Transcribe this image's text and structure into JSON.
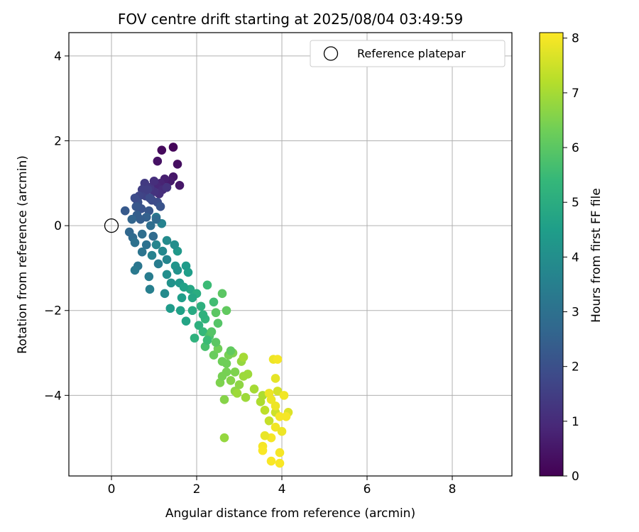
{
  "chart_data": {
    "type": "scatter",
    "title": "FOV centre drift starting at 2025/08/04 03:49:59",
    "xlabel": "Angular distance from reference (arcmin)",
    "ylabel": "Rotation from reference (arcmin)",
    "xlim": [
      -1.0,
      9.4
    ],
    "ylim": [
      -5.9,
      4.55
    ],
    "xticks": [
      0,
      2,
      4,
      6,
      8
    ],
    "yticks": [
      -4,
      -2,
      0,
      2,
      4
    ],
    "xtick_labels": [
      "0",
      "2",
      "4",
      "6",
      "8"
    ],
    "ytick_labels": [
      "−4",
      "−2",
      "0",
      "2",
      "4"
    ],
    "grid": true,
    "legend": {
      "position": "top-right",
      "entries": [
        "Reference platepar"
      ]
    },
    "reference_point": {
      "label": "Reference platepar",
      "x": 0,
      "y": 0,
      "marker": "open-circle"
    },
    "colorbar": {
      "label": "Hours from first FF file",
      "range": [
        0,
        8.1
      ],
      "ticks": [
        0,
        1,
        2,
        3,
        4,
        5,
        6,
        7,
        8
      ],
      "tick_labels": [
        "0",
        "1",
        "2",
        "3",
        "4",
        "5",
        "6",
        "7",
        "8"
      ],
      "colormap": "viridis",
      "colormap_stops": [
        "#440154",
        "#482878",
        "#3e4989",
        "#31688e",
        "#26828e",
        "#1f9e89",
        "#35b779",
        "#6ece58",
        "#b5de2b",
        "#fde725"
      ]
    },
    "points_columns": [
      "x",
      "y",
      "hours"
    ],
    "points": [
      [
        1.45,
        1.85,
        0.1
      ],
      [
        1.18,
        1.78,
        0.2
      ],
      [
        1.55,
        1.45,
        0.3
      ],
      [
        1.08,
        1.52,
        0.4
      ],
      [
        1.6,
        0.95,
        0.5
      ],
      [
        1.45,
        1.15,
        0.5
      ],
      [
        1.38,
        1.05,
        0.6
      ],
      [
        1.25,
        1.1,
        0.7
      ],
      [
        1.15,
        1.0,
        0.8
      ],
      [
        1.05,
        0.95,
        0.9
      ],
      [
        1.2,
        0.85,
        1.0
      ],
      [
        1.12,
        0.75,
        1.1
      ],
      [
        1.0,
        0.8,
        1.2
      ],
      [
        0.9,
        0.9,
        1.3
      ],
      [
        0.78,
        1.0,
        1.4
      ],
      [
        0.72,
        0.85,
        1.5
      ],
      [
        0.8,
        0.7,
        1.6
      ],
      [
        0.65,
        0.7,
        1.7
      ],
      [
        0.95,
        0.6,
        1.8
      ],
      [
        1.08,
        0.55,
        1.9
      ],
      [
        0.62,
        0.55,
        2.0
      ],
      [
        0.7,
        0.4,
        2.1
      ],
      [
        0.88,
        0.35,
        2.2
      ],
      [
        0.32,
        0.35,
        2.3
      ],
      [
        0.6,
        0.25,
        2.4
      ],
      [
        0.82,
        0.2,
        2.5
      ],
      [
        0.48,
        0.15,
        2.6
      ],
      [
        0.42,
        -0.15,
        2.7
      ],
      [
        0.5,
        -0.28,
        2.8
      ],
      [
        0.72,
        -0.2,
        2.9
      ],
      [
        0.55,
        -0.4,
        3.0
      ],
      [
        0.72,
        -0.62,
        3.1
      ],
      [
        0.62,
        -0.95,
        3.2
      ],
      [
        0.55,
        -1.05,
        3.3
      ],
      [
        0.88,
        -1.2,
        3.4
      ],
      [
        0.9,
        -1.5,
        3.5
      ],
      [
        0.95,
        -0.7,
        3.6
      ],
      [
        1.05,
        -0.45,
        3.7
      ],
      [
        1.2,
        -0.6,
        3.8
      ],
      [
        1.25,
        -1.6,
        3.9
      ],
      [
        1.3,
        -1.15,
        4.0
      ],
      [
        1.4,
        -1.35,
        4.1
      ],
      [
        1.5,
        -0.95,
        4.2
      ],
      [
        1.55,
        -0.6,
        4.3
      ],
      [
        1.6,
        -1.35,
        4.3
      ],
      [
        1.38,
        -1.95,
        4.4
      ],
      [
        1.65,
        -1.7,
        4.5
      ],
      [
        1.8,
        -1.1,
        4.5
      ],
      [
        1.62,
        -2.0,
        4.6
      ],
      [
        1.75,
        -2.25,
        4.7
      ],
      [
        1.85,
        -1.5,
        4.8
      ],
      [
        1.9,
        -2.0,
        4.9
      ],
      [
        2.0,
        -1.6,
        5.0
      ],
      [
        2.1,
        -1.9,
        5.1
      ],
      [
        2.05,
        -2.35,
        5.1
      ],
      [
        1.95,
        -2.65,
        5.2
      ],
      [
        2.2,
        -2.2,
        5.3
      ],
      [
        2.15,
        -2.5,
        5.4
      ],
      [
        2.25,
        -1.4,
        5.5
      ],
      [
        2.4,
        -1.8,
        5.6
      ],
      [
        2.2,
        -2.85,
        5.7
      ],
      [
        2.3,
        -2.6,
        5.8
      ],
      [
        2.5,
        -2.3,
        5.9
      ],
      [
        2.6,
        -1.6,
        6.0
      ],
      [
        2.45,
        -2.05,
        6.0
      ],
      [
        2.7,
        -2.0,
        6.1
      ],
      [
        2.4,
        -3.05,
        6.2
      ],
      [
        2.5,
        -2.9,
        6.3
      ],
      [
        2.6,
        -3.2,
        6.3
      ],
      [
        2.7,
        -3.45,
        6.4
      ],
      [
        2.55,
        -3.7,
        6.5
      ],
      [
        2.8,
        -3.65,
        6.6
      ],
      [
        2.65,
        -4.1,
        6.6
      ],
      [
        2.9,
        -3.9,
        6.7
      ],
      [
        2.65,
        -5.0,
        6.8
      ],
      [
        3.05,
        -3.2,
        6.8
      ],
      [
        3.2,
        -3.5,
        6.9
      ],
      [
        3.35,
        -3.85,
        7.0
      ],
      [
        3.1,
        -3.1,
        7.0
      ],
      [
        3.55,
        -4.0,
        7.1
      ],
      [
        3.6,
        -4.35,
        7.3
      ],
      [
        3.7,
        -4.6,
        7.4
      ],
      [
        3.85,
        -4.4,
        7.5
      ],
      [
        3.9,
        -3.9,
        7.6
      ],
      [
        4.15,
        -4.4,
        7.7
      ],
      [
        3.8,
        -3.15,
        7.9
      ],
      [
        3.9,
        -3.15,
        8.0
      ],
      [
        3.85,
        -3.6,
        7.8
      ],
      [
        3.75,
        -4.1,
        7.9
      ],
      [
        3.95,
        -4.5,
        8.0
      ],
      [
        3.85,
        -4.75,
        7.95
      ],
      [
        4.0,
        -4.85,
        7.9
      ],
      [
        3.75,
        -5.0,
        8.0
      ],
      [
        3.6,
        -4.95,
        7.85
      ],
      [
        3.55,
        -5.2,
        8.0
      ],
      [
        3.55,
        -5.3,
        8.05
      ],
      [
        3.95,
        -5.35,
        8.0
      ],
      [
        3.75,
        -5.55,
        8.05
      ],
      [
        3.95,
        -5.6,
        8.05
      ],
      [
        4.05,
        -4.0,
        7.95
      ],
      [
        4.1,
        -4.5,
        8.0
      ],
      [
        3.7,
        -3.95,
        7.9
      ],
      [
        3.85,
        -4.25,
        7.9
      ],
      [
        2.95,
        -3.95,
        6.9
      ],
      [
        3.1,
        -3.55,
        6.9
      ],
      [
        2.85,
        -3.0,
        6.5
      ],
      [
        2.75,
        -3.05,
        6.4
      ],
      [
        2.35,
        -2.5,
        5.9
      ],
      [
        1.75,
        -0.95,
        4.4
      ],
      [
        1.7,
        -1.45,
        4.6
      ],
      [
        1.48,
        -0.45,
        4.0
      ],
      [
        1.3,
        -0.35,
        3.9
      ],
      [
        1.18,
        0.05,
        3.6
      ],
      [
        1.05,
        0.2,
        3.3
      ],
      [
        0.92,
        0.0,
        2.9
      ],
      [
        0.98,
        -0.25,
        2.8
      ],
      [
        0.68,
        0.15,
        2.4
      ],
      [
        0.58,
        0.45,
        2.2
      ],
      [
        0.55,
        0.65,
        1.9
      ],
      [
        0.85,
        0.85,
        1.5
      ],
      [
        1.3,
        0.9,
        1.2
      ],
      [
        1.0,
        1.05,
        1.1
      ],
      [
        0.9,
        0.65,
        1.9
      ],
      [
        1.15,
        0.45,
        2.1
      ],
      [
        1.05,
        0.15,
        2.8
      ],
      [
        0.82,
        -0.45,
        3.0
      ],
      [
        1.1,
        -0.9,
        3.4
      ],
      [
        1.3,
        -0.8,
        3.7
      ],
      [
        1.55,
        -1.05,
        4.1
      ],
      [
        1.9,
        -1.7,
        4.8
      ],
      [
        2.15,
        -2.1,
        5.2
      ],
      [
        2.25,
        -2.7,
        5.5
      ],
      [
        2.45,
        -2.75,
        6.0
      ],
      [
        2.7,
        -3.25,
        6.3
      ],
      [
        2.9,
        -3.45,
        6.5
      ],
      [
        3.0,
        -3.75,
        6.7
      ],
      [
        3.15,
        -4.05,
        6.9
      ],
      [
        3.5,
        -4.15,
        7.1
      ],
      [
        2.6,
        -3.55,
        6.4
      ],
      [
        2.8,
        -2.95,
        6.1
      ]
    ]
  }
}
